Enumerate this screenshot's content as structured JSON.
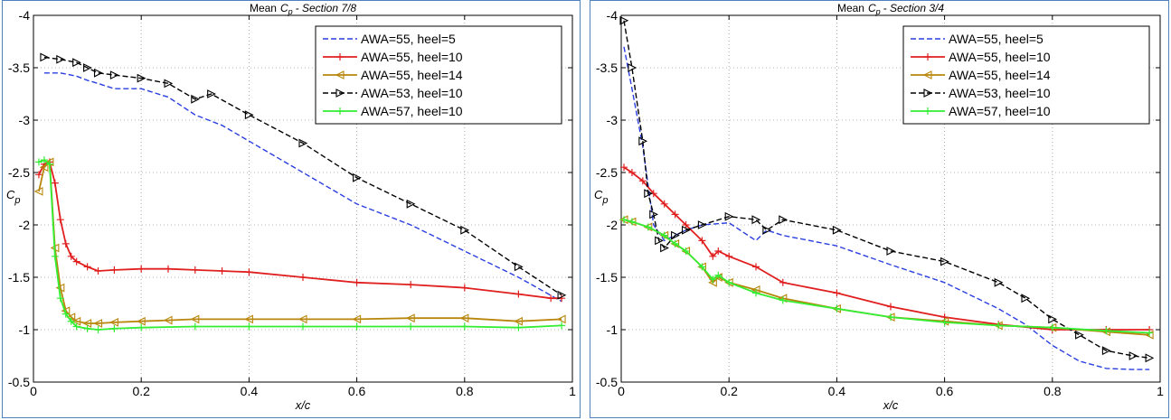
{
  "colors": {
    "blue": "#2a3ee0",
    "red": "#e01f1f",
    "brown": "#b8860b",
    "black": "#000000",
    "green": "#33ee33",
    "border": "#4f81bd"
  },
  "chart_data": [
    {
      "type": "line",
      "title_prefix": "Mean",
      "title_symbol": "C",
      "title_sub": "p",
      "title_suffix": "- Section 7/8",
      "xlabel": "x/c",
      "ylabel": "C",
      "ylabel_sub": "p",
      "xlim": [
        0,
        1
      ],
      "ylim": [
        -0.5,
        -4
      ],
      "y_reversed": true,
      "grid": true,
      "grid_style": "dotted",
      "legend_position": "top-right",
      "xticks": [
        "0",
        "0.2",
        "0.4",
        "0.6",
        "0.8",
        "1"
      ],
      "yticks": [
        "-4",
        "-3.5",
        "-3",
        "-2.5",
        "-2",
        "-1.5",
        "-1",
        "-0.5"
      ],
      "series": [
        {
          "name": "AWA=55, heel=5",
          "color": "blue",
          "linestyle": "dashed",
          "marker": "none",
          "x": [
            0.02,
            0.05,
            0.08,
            0.1,
            0.12,
            0.15,
            0.2,
            0.25,
            0.3,
            0.35,
            0.4,
            0.5,
            0.6,
            0.7,
            0.8,
            0.9,
            0.98
          ],
          "y": [
            -3.45,
            -3.45,
            -3.42,
            -3.38,
            -3.35,
            -3.3,
            -3.3,
            -3.22,
            -3.05,
            -2.95,
            -2.8,
            -2.5,
            -2.2,
            -2.0,
            -1.75,
            -1.5,
            -1.27
          ]
        },
        {
          "name": "AWA=55, heel=10",
          "color": "red",
          "linestyle": "solid",
          "marker": "plus",
          "x": [
            0.01,
            0.02,
            0.03,
            0.04,
            0.05,
            0.06,
            0.07,
            0.08,
            0.1,
            0.12,
            0.15,
            0.2,
            0.25,
            0.3,
            0.35,
            0.4,
            0.5,
            0.6,
            0.7,
            0.8,
            0.9,
            0.96,
            0.98
          ],
          "y": [
            -2.48,
            -2.58,
            -2.6,
            -2.4,
            -2.05,
            -1.82,
            -1.7,
            -1.65,
            -1.6,
            -1.56,
            -1.57,
            -1.58,
            -1.58,
            -1.57,
            -1.56,
            -1.55,
            -1.5,
            -1.45,
            -1.43,
            -1.4,
            -1.34,
            -1.3,
            -1.3
          ]
        },
        {
          "name": "AWA=55, heel=14",
          "color": "brown",
          "linestyle": "solid",
          "marker": "triangle-left",
          "x": [
            0.01,
            0.02,
            0.03,
            0.04,
            0.05,
            0.06,
            0.07,
            0.08,
            0.1,
            0.12,
            0.15,
            0.2,
            0.25,
            0.3,
            0.4,
            0.5,
            0.6,
            0.7,
            0.8,
            0.9,
            0.98
          ],
          "y": [
            -2.32,
            -2.55,
            -2.6,
            -1.78,
            -1.4,
            -1.18,
            -1.12,
            -1.08,
            -1.06,
            -1.06,
            -1.07,
            -1.08,
            -1.09,
            -1.1,
            -1.1,
            -1.1,
            -1.1,
            -1.11,
            -1.11,
            -1.08,
            -1.1
          ]
        },
        {
          "name": "AWA=53, heel=10",
          "color": "black",
          "linestyle": "dashed",
          "marker": "triangle-right",
          "x": [
            0.02,
            0.05,
            0.08,
            0.1,
            0.12,
            0.15,
            0.2,
            0.25,
            0.3,
            0.33,
            0.4,
            0.5,
            0.6,
            0.7,
            0.8,
            0.9,
            0.98
          ],
          "y": [
            -3.6,
            -3.58,
            -3.55,
            -3.5,
            -3.45,
            -3.43,
            -3.4,
            -3.35,
            -3.2,
            -3.25,
            -3.05,
            -2.78,
            -2.45,
            -2.2,
            -1.95,
            -1.6,
            -1.33
          ]
        },
        {
          "name": "AWA=57, heel=10",
          "color": "green",
          "linestyle": "solid",
          "marker": "plus",
          "x": [
            0.01,
            0.02,
            0.03,
            0.04,
            0.05,
            0.06,
            0.07,
            0.08,
            0.1,
            0.12,
            0.15,
            0.2,
            0.3,
            0.4,
            0.5,
            0.6,
            0.7,
            0.8,
            0.9,
            0.98
          ],
          "y": [
            -2.6,
            -2.62,
            -2.58,
            -1.7,
            -1.3,
            -1.15,
            -1.08,
            -1.03,
            -1.01,
            -1.0,
            -1.01,
            -1.02,
            -1.03,
            -1.03,
            -1.03,
            -1.03,
            -1.03,
            -1.03,
            -1.02,
            -1.04
          ]
        }
      ]
    },
    {
      "type": "line",
      "title_prefix": "Mean",
      "title_symbol": "C",
      "title_sub": "p",
      "title_suffix": "- Section 3/4",
      "xlabel": "x/c",
      "ylabel": "C",
      "ylabel_sub": "p",
      "xlim": [
        0,
        1
      ],
      "ylim": [
        -0.5,
        -4
      ],
      "y_reversed": true,
      "grid": true,
      "grid_style": "dotted",
      "legend_position": "top-right",
      "xticks": [
        "0",
        "0.2",
        "0.4",
        "0.6",
        "0.8",
        "1"
      ],
      "yticks": [
        "-4",
        "-3.5",
        "-3",
        "-2.5",
        "-2",
        "-1.5",
        "-1",
        "-0.5"
      ],
      "series": [
        {
          "name": "AWA=55, heel=5",
          "color": "blue",
          "linestyle": "dashed",
          "marker": "none",
          "x": [
            0.005,
            0.02,
            0.04,
            0.06,
            0.08,
            0.1,
            0.12,
            0.15,
            0.2,
            0.25,
            0.27,
            0.3,
            0.4,
            0.5,
            0.6,
            0.7,
            0.75,
            0.8,
            0.85,
            0.9,
            0.95,
            0.98
          ],
          "y": [
            -3.7,
            -3.3,
            -2.75,
            -2.0,
            -1.85,
            -1.9,
            -1.95,
            -2.0,
            -2.02,
            -1.85,
            -1.95,
            -1.9,
            -1.8,
            -1.62,
            -1.45,
            -1.2,
            -1.05,
            -0.85,
            -0.7,
            -0.63,
            -0.62,
            -0.62
          ]
        },
        {
          "name": "AWA=55, heel=10",
          "color": "red",
          "linestyle": "solid",
          "marker": "plus",
          "x": [
            0.005,
            0.02,
            0.04,
            0.06,
            0.08,
            0.1,
            0.12,
            0.15,
            0.17,
            0.18,
            0.2,
            0.25,
            0.3,
            0.4,
            0.5,
            0.6,
            0.7,
            0.8,
            0.9,
            0.98
          ],
          "y": [
            -2.55,
            -2.5,
            -2.42,
            -2.3,
            -2.2,
            -2.1,
            -2.0,
            -1.85,
            -1.7,
            -1.75,
            -1.7,
            -1.6,
            -1.45,
            -1.35,
            -1.22,
            -1.12,
            -1.05,
            -1.0,
            -1.0,
            -1.0
          ]
        },
        {
          "name": "AWA=55, heel=14",
          "color": "brown",
          "linestyle": "solid",
          "marker": "triangle-left",
          "x": [
            0.005,
            0.02,
            0.05,
            0.08,
            0.1,
            0.12,
            0.15,
            0.17,
            0.18,
            0.2,
            0.25,
            0.3,
            0.4,
            0.5,
            0.6,
            0.7,
            0.8,
            0.9,
            0.98
          ],
          "y": [
            -2.05,
            -2.03,
            -1.98,
            -1.9,
            -1.82,
            -1.75,
            -1.6,
            -1.45,
            -1.5,
            -1.45,
            -1.38,
            -1.3,
            -1.2,
            -1.12,
            -1.08,
            -1.04,
            -1.02,
            -0.98,
            -0.95
          ]
        },
        {
          "name": "AWA=53, heel=10",
          "color": "black",
          "linestyle": "dashed",
          "marker": "triangle-right",
          "x": [
            0.005,
            0.02,
            0.04,
            0.05,
            0.06,
            0.07,
            0.08,
            0.1,
            0.12,
            0.15,
            0.2,
            0.25,
            0.27,
            0.3,
            0.4,
            0.5,
            0.6,
            0.7,
            0.75,
            0.8,
            0.85,
            0.9,
            0.95,
            0.98
          ],
          "y": [
            -3.95,
            -3.5,
            -2.8,
            -2.3,
            -2.1,
            -1.85,
            -1.78,
            -1.9,
            -1.95,
            -2.0,
            -2.08,
            -2.05,
            -1.95,
            -2.05,
            -1.95,
            -1.75,
            -1.65,
            -1.45,
            -1.3,
            -1.1,
            -0.95,
            -0.8,
            -0.75,
            -0.73
          ]
        },
        {
          "name": "AWA=57, heel=10",
          "color": "green",
          "linestyle": "solid",
          "marker": "plus",
          "x": [
            0.005,
            0.02,
            0.05,
            0.08,
            0.1,
            0.12,
            0.15,
            0.17,
            0.18,
            0.2,
            0.25,
            0.3,
            0.4,
            0.5,
            0.6,
            0.7,
            0.8,
            0.9,
            0.98
          ],
          "y": [
            -2.05,
            -2.03,
            -1.98,
            -1.9,
            -1.82,
            -1.75,
            -1.6,
            -1.48,
            -1.52,
            -1.45,
            -1.35,
            -1.28,
            -1.2,
            -1.12,
            -1.07,
            -1.04,
            -1.02,
            -0.99,
            -0.97
          ]
        }
      ]
    }
  ]
}
